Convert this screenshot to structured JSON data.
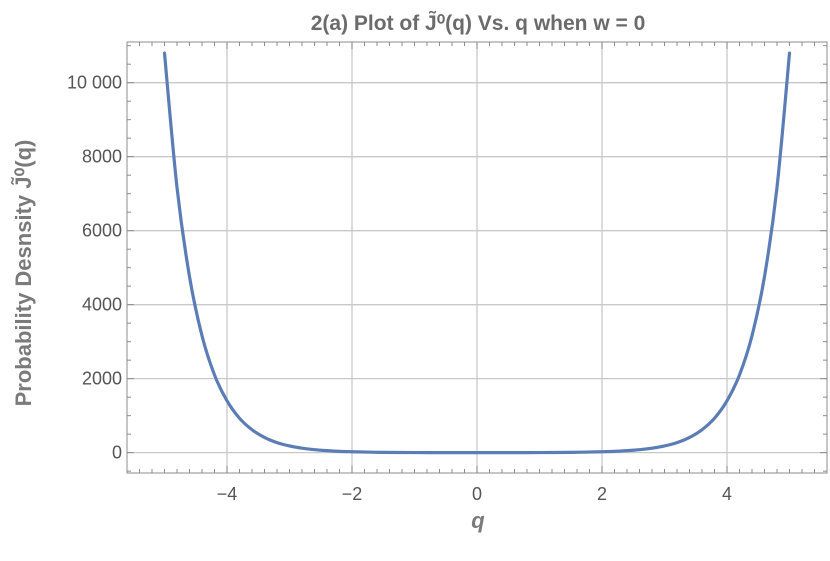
{
  "chart_data": {
    "type": "line",
    "title": "2(a) Plot of J̃⁰(q) Vs. q when w = 0",
    "xlabel": "q",
    "ylabel": "Probability  Desnsity J̃⁰(q)",
    "xlim": [
      -5.6,
      5.6
    ],
    "ylim": [
      -550,
      11100
    ],
    "x_ticks": [
      -4,
      -2,
      0,
      2,
      4
    ],
    "x_tick_labels": [
      "−4",
      "−2",
      "0",
      "2",
      "4"
    ],
    "y_ticks": [
      0,
      2000,
      4000,
      6000,
      8000,
      10000
    ],
    "y_tick_labels": [
      "0",
      "2000",
      "4000",
      "6000",
      "8000",
      "10 000"
    ],
    "grid": true,
    "series": [
      {
        "color": "#5b7db5",
        "x": [
          -5.0,
          -4.8,
          -4.6,
          -4.4,
          -4.2,
          -4.0,
          -3.8,
          -3.6,
          -3.4,
          -3.2,
          -3.0,
          -2.8,
          -2.6,
          -2.4,
          -2.2,
          -2.0,
          -1.5,
          -1.0,
          -0.5,
          0.0,
          0.5,
          1.0,
          1.5,
          2.0,
          2.2,
          2.4,
          2.6,
          2.8,
          3.0,
          3.2,
          3.4,
          3.6,
          3.8,
          4.0,
          4.2,
          4.4,
          4.6,
          4.8,
          5.0
        ],
        "y": [
          10800,
          7170,
          4760,
          3160,
          2100,
          1400,
          930,
          620,
          410,
          270,
          180,
          120,
          80,
          55,
          35,
          25,
          8,
          3,
          1,
          0,
          1,
          3,
          8,
          25,
          35,
          55,
          80,
          120,
          180,
          270,
          410,
          620,
          930,
          1400,
          2100,
          3160,
          4760,
          7170,
          10800
        ]
      }
    ]
  }
}
